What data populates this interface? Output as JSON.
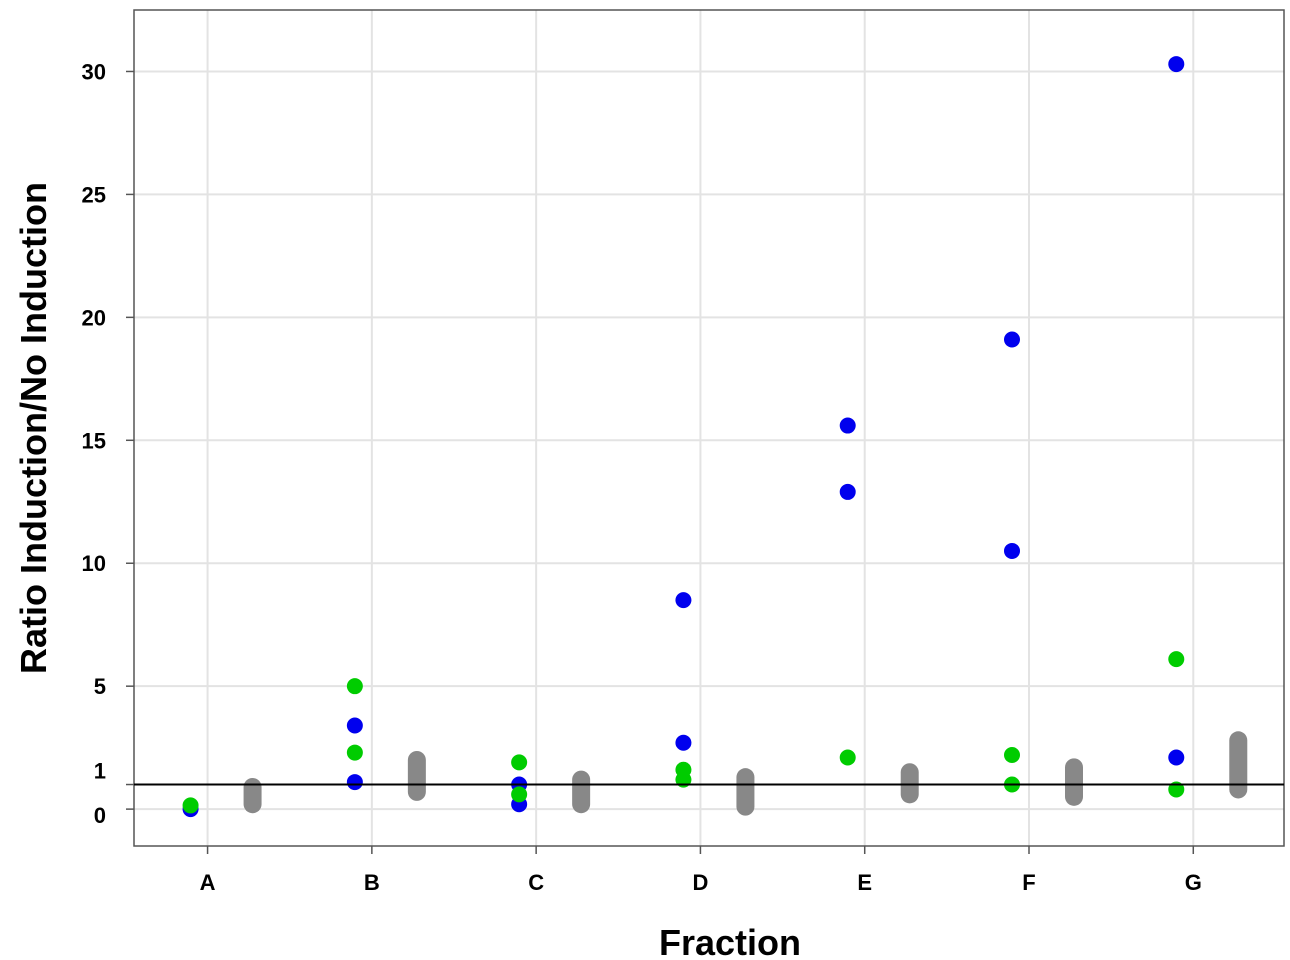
{
  "chart_data": {
    "type": "scatter",
    "xlabel": "Fraction",
    "ylabel": "Ratio Induction/No Induction",
    "categories": [
      "A",
      "B",
      "C",
      "D",
      "E",
      "F",
      "G"
    ],
    "y_ticks": [
      0,
      1,
      5,
      10,
      15,
      20,
      25,
      30
    ],
    "ylim": [
      -1.5,
      32.5
    ],
    "grid": true,
    "reference_line": 1,
    "colors": {
      "blue": "#0000ee",
      "green": "#00cc00",
      "gray": "#888888"
    },
    "series": [
      {
        "color": "blue",
        "offset": "left",
        "points": [
          {
            "category": "A",
            "values": [
              0
            ]
          },
          {
            "category": "B",
            "values": [
              1.1,
              3.4
            ]
          },
          {
            "category": "C",
            "values": [
              0.2,
              1.0
            ]
          },
          {
            "category": "D",
            "values": [
              2.7,
              8.5
            ]
          },
          {
            "category": "E",
            "values": [
              12.9,
              15.6
            ]
          },
          {
            "category": "F",
            "values": [
              10.5,
              19.1
            ]
          },
          {
            "category": "G",
            "values": [
              2.1,
              30.3
            ]
          }
        ]
      },
      {
        "color": "green",
        "offset": "left",
        "points": [
          {
            "category": "A",
            "values": [
              0.15
            ]
          },
          {
            "category": "B",
            "values": [
              2.3,
              5.0
            ]
          },
          {
            "category": "C",
            "values": [
              0.6,
              1.9
            ]
          },
          {
            "category": "D",
            "values": [
              1.2,
              1.6
            ]
          },
          {
            "category": "E",
            "values": [
              2.1
            ]
          },
          {
            "category": "F",
            "values": [
              1.0,
              2.2
            ]
          },
          {
            "category": "G",
            "values": [
              0.8,
              6.1
            ]
          }
        ]
      },
      {
        "color": "gray",
        "offset": "right",
        "ranges": [
          {
            "category": "A",
            "range": [
              0.2,
              0.9
            ]
          },
          {
            "category": "B",
            "range": [
              0.7,
              2.0
            ]
          },
          {
            "category": "C",
            "range": [
              0.2,
              1.2
            ]
          },
          {
            "category": "D",
            "range": [
              0.1,
              1.3
            ]
          },
          {
            "category": "E",
            "range": [
              0.6,
              1.5
            ]
          },
          {
            "category": "F",
            "range": [
              0.5,
              1.7
            ]
          },
          {
            "category": "G",
            "range": [
              0.8,
              2.8
            ]
          }
        ]
      }
    ]
  }
}
